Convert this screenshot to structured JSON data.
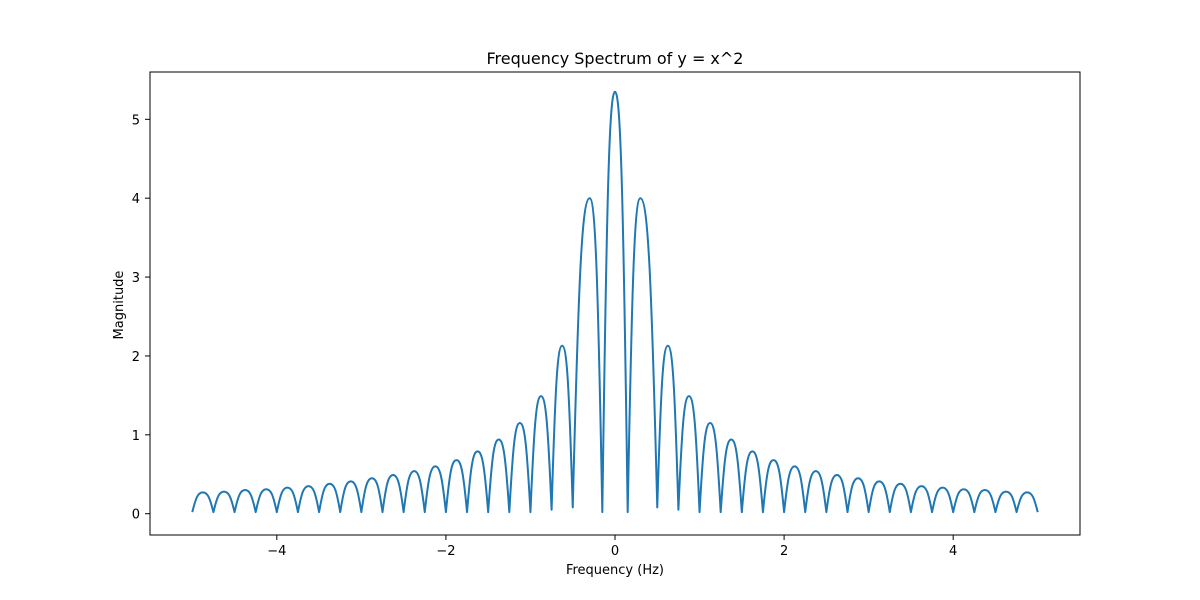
{
  "chart_data": {
    "type": "line",
    "title": "Frequency Spectrum of y = x^2",
    "xlabel": "Frequency (Hz)",
    "ylabel": "Magnitude",
    "xlim": [
      -5.5,
      5.5
    ],
    "ylim": [
      -0.27,
      5.6
    ],
    "xticks": [
      -4,
      -2,
      0,
      2,
      4
    ],
    "xtick_labels": [
      "−4",
      "−2",
      "0",
      "2",
      "4"
    ],
    "yticks": [
      0,
      1,
      2,
      3,
      4,
      5
    ],
    "ytick_labels": [
      "0",
      "1",
      "2",
      "3",
      "4",
      "5"
    ],
    "grid": false,
    "legend": false,
    "series_color": "#1f77b4",
    "series": [
      {
        "x": [
          -5.0,
          -4.875,
          -4.75,
          -4.625,
          -4.5,
          -4.375,
          -4.25,
          -4.125,
          -4.0,
          -3.875,
          -3.75,
          -3.625,
          -3.5,
          -3.375,
          -3.25,
          -3.125,
          -3.0,
          -2.875,
          -2.75,
          -2.625,
          -2.5,
          -2.375,
          -2.25,
          -2.125,
          -2.0,
          -1.875,
          -1.75,
          -1.625,
          -1.5,
          -1.375,
          -1.25,
          -1.125,
          -1.0,
          -0.875,
          -0.75,
          -0.625,
          -0.5,
          -0.3,
          -0.15,
          0.0,
          0.15,
          0.3,
          0.5,
          0.625,
          0.75,
          0.875,
          1.0,
          1.125,
          1.25,
          1.375,
          1.5,
          1.625,
          1.75,
          1.875,
          2.0,
          2.125,
          2.25,
          2.375,
          2.5,
          2.625,
          2.75,
          2.875,
          3.0,
          3.125,
          3.25,
          3.375,
          3.5,
          3.625,
          3.75,
          3.875,
          4.0,
          4.125,
          4.25,
          4.375,
          4.5,
          4.625,
          4.75,
          4.875,
          5.0
        ],
        "y": [
          0.02,
          0.27,
          0.02,
          0.28,
          0.02,
          0.3,
          0.02,
          0.31,
          0.02,
          0.33,
          0.02,
          0.35,
          0.02,
          0.38,
          0.02,
          0.41,
          0.02,
          0.45,
          0.02,
          0.49,
          0.02,
          0.54,
          0.02,
          0.6,
          0.02,
          0.68,
          0.02,
          0.79,
          0.02,
          0.94,
          0.02,
          1.15,
          0.02,
          1.49,
          0.05,
          2.13,
          0.08,
          4.0,
          0.02,
          5.35,
          0.02,
          4.0,
          0.08,
          2.13,
          0.05,
          1.49,
          0.02,
          1.15,
          0.02,
          0.94,
          0.02,
          0.79,
          0.02,
          0.68,
          0.02,
          0.6,
          0.02,
          0.54,
          0.02,
          0.49,
          0.02,
          0.45,
          0.02,
          0.41,
          0.02,
          0.38,
          0.02,
          0.35,
          0.02,
          0.33,
          0.02,
          0.31,
          0.02,
          0.3,
          0.02,
          0.28,
          0.02,
          0.27,
          0.02
        ]
      }
    ]
  }
}
